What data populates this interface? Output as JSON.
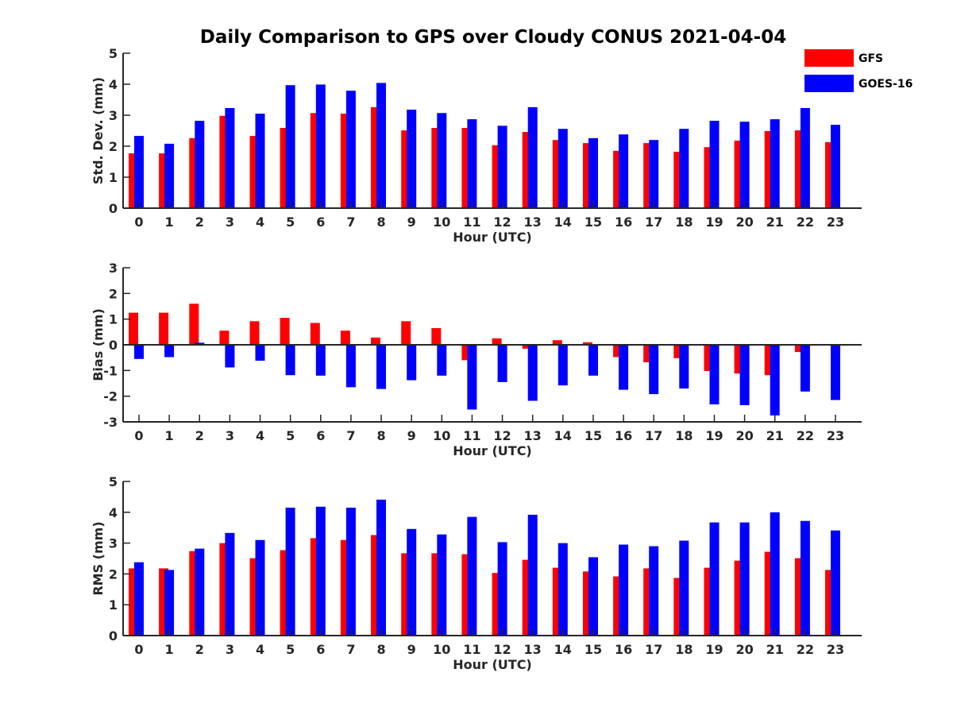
{
  "title": "Daily Comparison to GPS over Cloudy CONUS 2021-04-04",
  "legend": {
    "placement": "top-right",
    "items": [
      {
        "name": "GFS",
        "color": "#ff0000"
      },
      {
        "name": "GOES-16",
        "color": "#0000ff"
      }
    ]
  },
  "chart_data": [
    {
      "type": "bar",
      "ylabel": "Std. Dev. (mm)",
      "xlabel": "Hour (UTC)",
      "ylim": [
        0,
        5
      ],
      "yticks": [
        0,
        1,
        2,
        3,
        4,
        5
      ],
      "categories": [
        "0",
        "1",
        "2",
        "3",
        "4",
        "5",
        "6",
        "7",
        "8",
        "9",
        "10",
        "11",
        "12",
        "13",
        "14",
        "15",
        "16",
        "17",
        "18",
        "19",
        "20",
        "21",
        "22",
        "23"
      ],
      "series": [
        {
          "name": "GFS",
          "color": "#ff0000",
          "values": [
            1.77,
            1.77,
            2.26,
            2.98,
            2.33,
            2.59,
            3.07,
            3.05,
            3.26,
            2.51,
            2.59,
            2.59,
            2.03,
            2.46,
            2.2,
            2.1,
            1.85,
            2.1,
            1.82,
            1.97,
            2.18,
            2.49,
            2.51,
            2.13
          ]
        },
        {
          "name": "GOES-16",
          "color": "#0000ff",
          "values": [
            2.33,
            2.08,
            2.82,
            3.23,
            3.05,
            3.97,
            3.99,
            3.79,
            4.04,
            3.18,
            3.07,
            2.87,
            2.66,
            3.26,
            2.56,
            2.26,
            2.38,
            2.2,
            2.56,
            2.82,
            2.79,
            2.87,
            3.23,
            2.69
          ]
        }
      ]
    },
    {
      "type": "bar",
      "ylabel": "Bias (mm)",
      "xlabel": "Hour (UTC)",
      "ylim": [
        -3,
        3
      ],
      "yticks": [
        -3,
        -2,
        -1,
        0,
        1,
        2,
        3
      ],
      "zero_line": true,
      "categories": [
        "0",
        "1",
        "2",
        "3",
        "4",
        "5",
        "6",
        "7",
        "8",
        "9",
        "10",
        "11",
        "12",
        "13",
        "14",
        "15",
        "16",
        "17",
        "18",
        "19",
        "20",
        "21",
        "22",
        "23"
      ],
      "series": [
        {
          "name": "GFS",
          "color": "#ff0000",
          "values": [
            1.25,
            1.25,
            1.6,
            0.55,
            0.92,
            1.05,
            0.85,
            0.55,
            0.28,
            0.92,
            0.65,
            -0.6,
            0.25,
            -0.15,
            0.18,
            0.1,
            -0.48,
            -0.68,
            -0.52,
            -1.02,
            -1.12,
            -1.18,
            -0.28,
            0.0
          ]
        },
        {
          "name": "GOES-16",
          "color": "#0000ff",
          "values": [
            -0.55,
            -0.48,
            0.08,
            -0.88,
            -0.62,
            -1.18,
            -1.2,
            -1.65,
            -1.72,
            -1.38,
            -1.2,
            -2.52,
            -1.45,
            -2.18,
            -1.58,
            -1.2,
            -1.75,
            -1.92,
            -1.7,
            -2.32,
            -2.35,
            -2.75,
            -1.82,
            -2.15
          ]
        }
      ]
    },
    {
      "type": "bar",
      "ylabel": "RMS (mm)",
      "xlabel": "Hour (UTC)",
      "ylim": [
        0,
        5
      ],
      "yticks": [
        0,
        1,
        2,
        3,
        4,
        5
      ],
      "categories": [
        "0",
        "1",
        "2",
        "3",
        "4",
        "5",
        "6",
        "7",
        "8",
        "9",
        "10",
        "11",
        "12",
        "13",
        "14",
        "15",
        "16",
        "17",
        "18",
        "19",
        "20",
        "21",
        "22",
        "23"
      ],
      "series": [
        {
          "name": "GFS",
          "color": "#ff0000",
          "values": [
            2.18,
            2.18,
            2.74,
            3.0,
            2.51,
            2.77,
            3.16,
            3.1,
            3.26,
            2.67,
            2.67,
            2.64,
            2.03,
            2.46,
            2.2,
            2.08,
            1.92,
            2.18,
            1.87,
            2.2,
            2.43,
            2.72,
            2.51,
            2.13
          ]
        },
        {
          "name": "GOES-16",
          "color": "#0000ff",
          "values": [
            2.38,
            2.13,
            2.82,
            3.33,
            3.1,
            4.15,
            4.18,
            4.15,
            4.41,
            3.46,
            3.28,
            3.85,
            3.03,
            3.92,
            3.0,
            2.54,
            2.95,
            2.9,
            3.08,
            3.67,
            3.67,
            4.0,
            3.72,
            3.41
          ]
        }
      ]
    }
  ]
}
